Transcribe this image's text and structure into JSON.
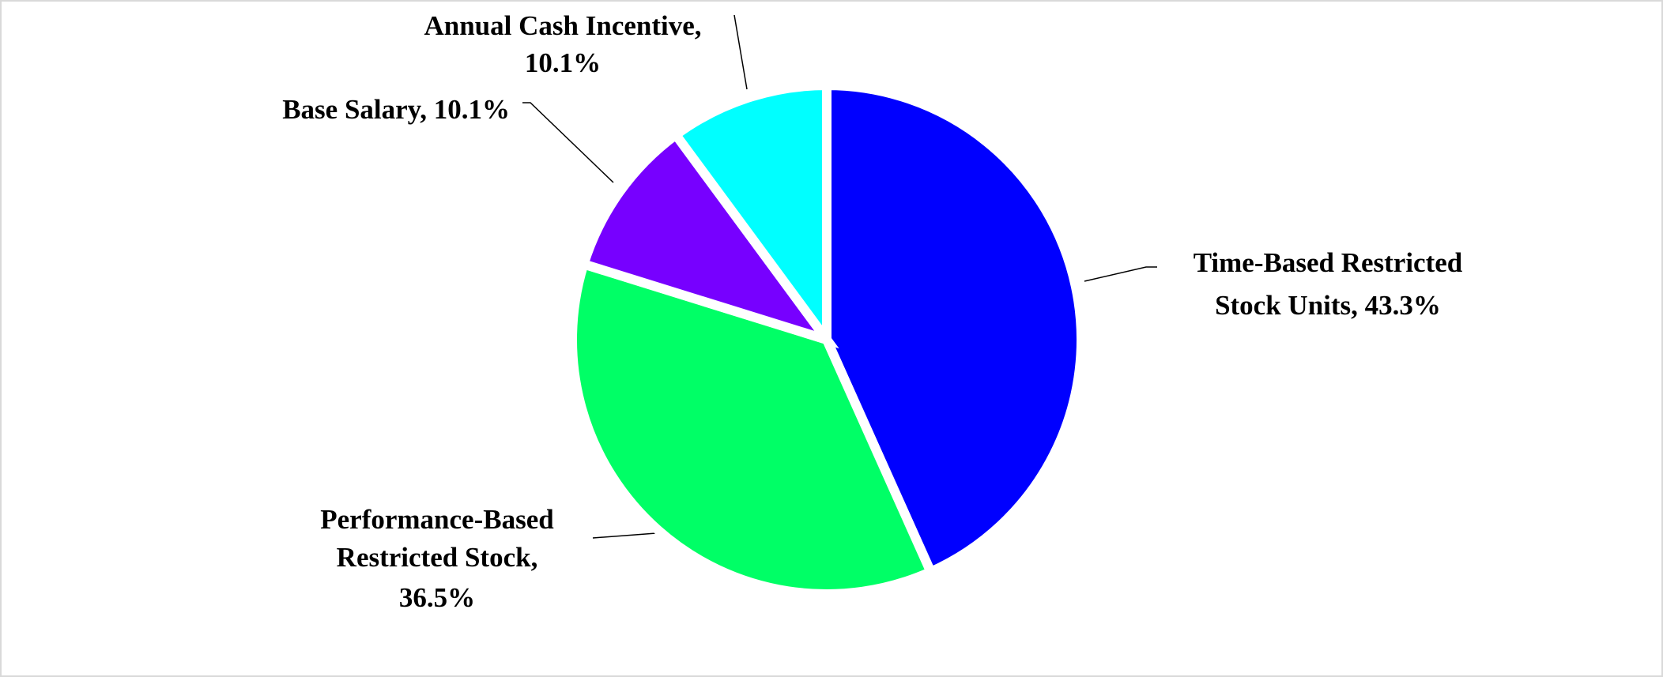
{
  "chart_data": {
    "type": "pie",
    "values": [
      43.3,
      36.5,
      10.1,
      10.1
    ],
    "value_labels": [
      [
        "Time-Based Restricted",
        "Stock Units, 43.3%"
      ],
      [
        "Performance-Based",
        "Restricted Stock,",
        "36.5%"
      ],
      [
        "Base Salary, 10.1%"
      ],
      [
        "Annual Cash Incentive,",
        "10.1%"
      ]
    ],
    "colors": [
      "#0000ff",
      "#00ff66",
      "#7700ff",
      "#00ffff"
    ]
  }
}
